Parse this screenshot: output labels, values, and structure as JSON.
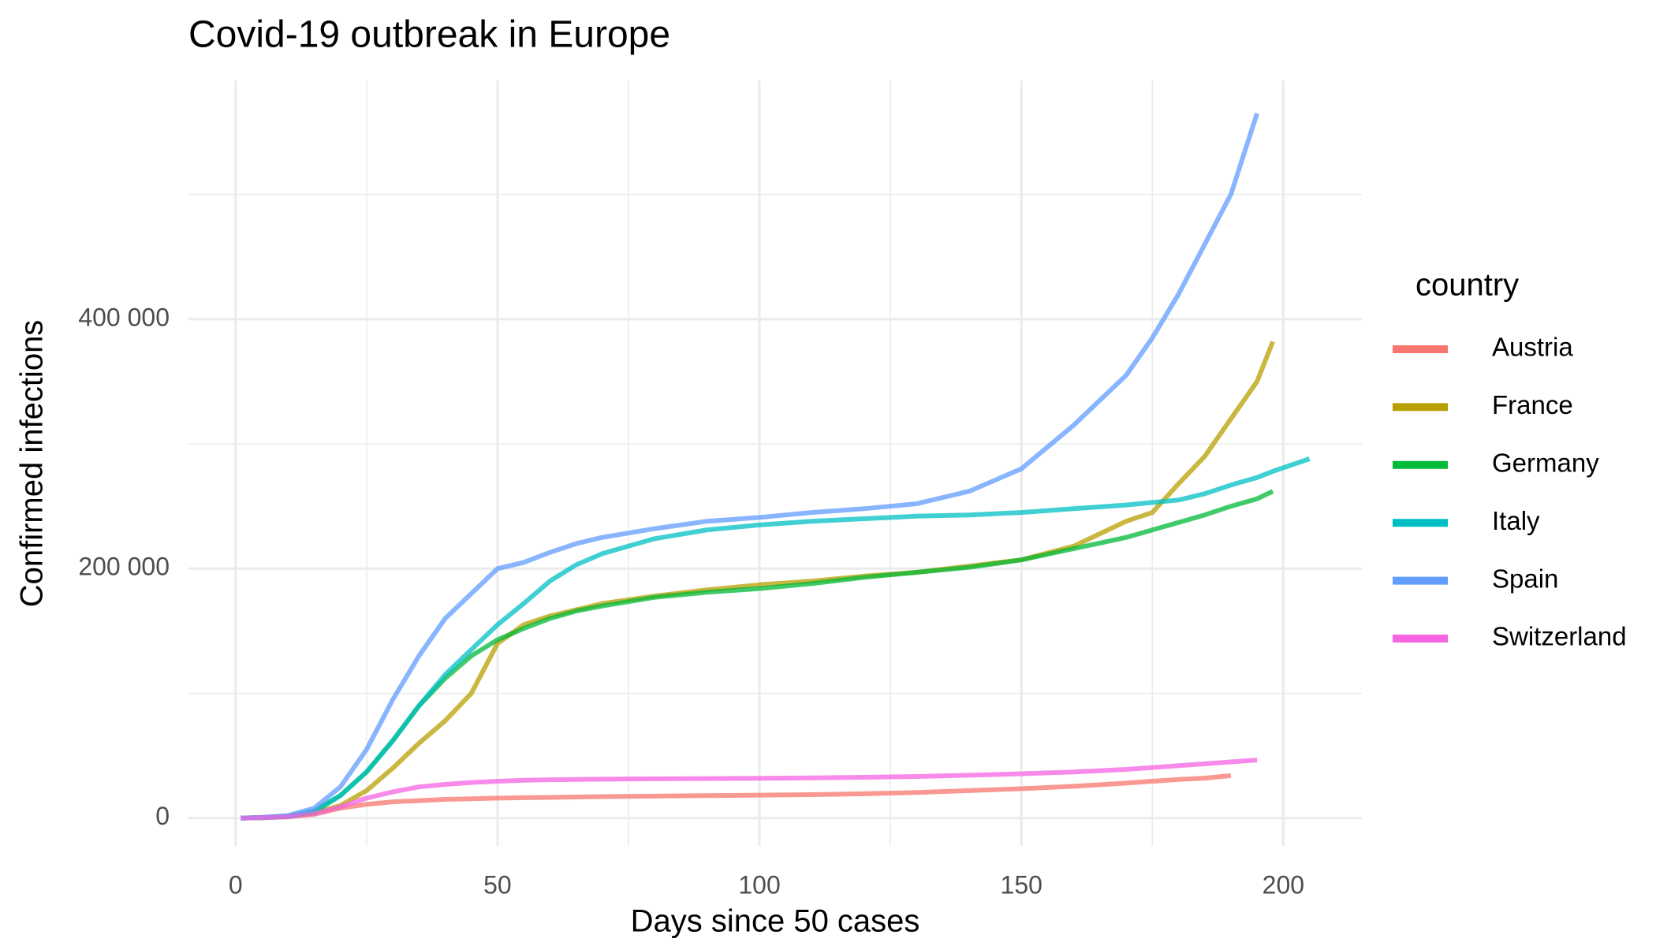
{
  "chart_data": {
    "type": "line",
    "title": "Covid-19 outbreak in Europe",
    "x_label": "Days since 50 cases",
    "y_label": "Confirmed infections",
    "legend_title": "country",
    "legend": "right",
    "grid": true,
    "x": [
      1,
      5,
      10,
      15,
      20,
      25,
      30,
      35,
      40,
      45,
      50,
      55,
      60,
      65,
      70,
      80,
      90,
      100,
      110,
      120,
      130,
      140,
      150,
      160,
      170,
      175,
      180,
      185,
      190,
      195,
      198,
      205
    ],
    "series": [
      {
        "name": "Austria",
        "color": "#F8766D",
        "values": [
          0,
          500,
          1200,
          3000,
          8000,
          11000,
          13000,
          14000,
          15000,
          15500,
          16000,
          16300,
          16600,
          16900,
          17200,
          17600,
          18000,
          18400,
          18800,
          19500,
          20500,
          22000,
          23500,
          25500,
          28000,
          29500,
          31000,
          32000,
          34000,
          null,
          null,
          null
        ]
      },
      {
        "name": "France",
        "color": "#B79F00",
        "values": [
          0,
          300,
          1000,
          4000,
          10000,
          22000,
          40000,
          60000,
          78000,
          100000,
          140000,
          155000,
          162000,
          167000,
          172000,
          178000,
          183000,
          187000,
          190000,
          194000,
          197000,
          202000,
          207000,
          218000,
          238000,
          245000,
          268000,
          290000,
          320000,
          350000,
          382000,
          null
        ]
      },
      {
        "name": "Germany",
        "color": "#00BA38",
        "values": [
          0,
          300,
          1200,
          5000,
          18000,
          37000,
          62000,
          90000,
          112000,
          130000,
          143000,
          152000,
          160000,
          166000,
          170000,
          177000,
          181000,
          184000,
          188000,
          193000,
          197000,
          201000,
          207000,
          216000,
          225000,
          231000,
          237000,
          243000,
          250000,
          256000,
          262000,
          null
        ]
      },
      {
        "name": "Italy",
        "color": "#00BFC4",
        "values": [
          0,
          500,
          1500,
          6000,
          18000,
          37000,
          62000,
          90000,
          115000,
          135000,
          155000,
          172000,
          190000,
          203000,
          212000,
          224000,
          231000,
          235000,
          238000,
          240000,
          242000,
          243000,
          245000,
          248000,
          251000,
          253000,
          255000,
          260000,
          267000,
          273000,
          278000,
          288000
        ]
      },
      {
        "name": "Spain",
        "color": "#619CFF",
        "values": [
          0,
          500,
          2000,
          8000,
          25000,
          55000,
          95000,
          130000,
          160000,
          180000,
          200000,
          205000,
          213000,
          220000,
          225000,
          232000,
          238000,
          241000,
          245000,
          248000,
          252000,
          262000,
          280000,
          315000,
          355000,
          385000,
          420000,
          460000,
          500000,
          565000,
          null,
          null
        ]
      },
      {
        "name": "Switzerland",
        "color": "#F564E3",
        "values": [
          0,
          300,
          1000,
          3500,
          9000,
          16000,
          21000,
          25000,
          27000,
          28500,
          29500,
          30300,
          30700,
          31000,
          31200,
          31500,
          31700,
          31900,
          32200,
          32700,
          33300,
          34300,
          35500,
          37000,
          39000,
          40500,
          42000,
          43500,
          45000,
          46500,
          null,
          null
        ]
      }
    ],
    "xlim": [
      -9,
      215
    ],
    "ylim": [
      -22300,
      591400
    ],
    "xticks": [
      0,
      50,
      100,
      150,
      200
    ],
    "yticks": [
      0,
      {
        "value": 200000,
        "label": "200 000"
      },
      {
        "value": 400000,
        "label": "400 000"
      }
    ],
    "xminor": [
      25,
      75,
      125,
      175
    ],
    "yminor": [
      100000,
      300000,
      500000
    ]
  }
}
